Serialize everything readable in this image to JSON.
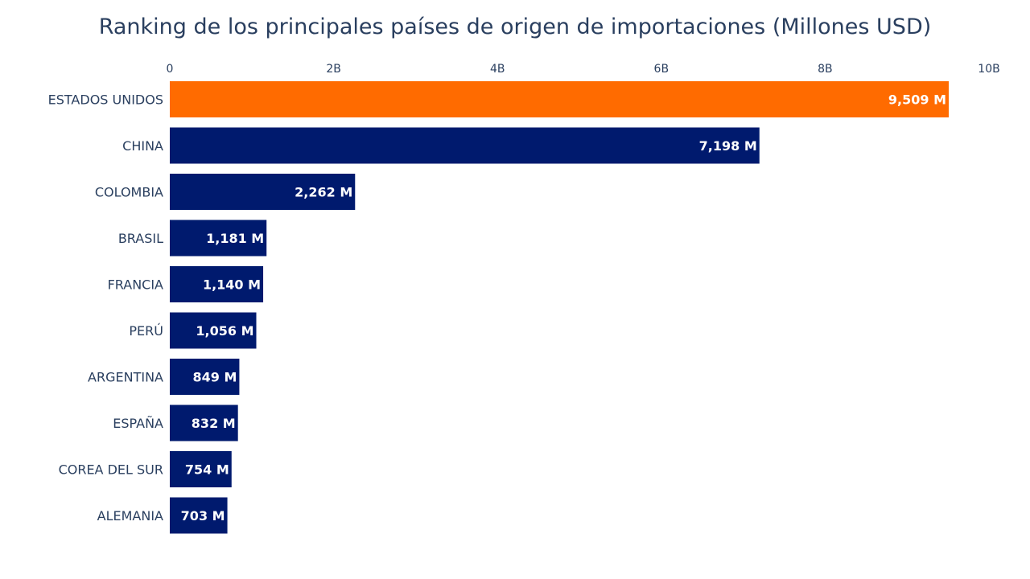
{
  "chart_data": {
    "type": "bar",
    "orientation": "horizontal",
    "title": "Ranking de los principales países de origen de importaciones (Millones USD)",
    "xlabel": "",
    "ylabel": "",
    "xlim": [
      0,
      10000
    ],
    "x_ticks": [
      {
        "value": 0,
        "label": "0"
      },
      {
        "value": 2000,
        "label": "2B"
      },
      {
        "value": 4000,
        "label": "4B"
      },
      {
        "value": 6000,
        "label": "6B"
      },
      {
        "value": 8000,
        "label": "8B"
      },
      {
        "value": 10000,
        "label": "10B"
      }
    ],
    "x_axis_position": "top",
    "grid": false,
    "legend": false,
    "categories": [
      "ESTADOS UNIDOS",
      "CHINA",
      "COLOMBIA",
      "BRASIL",
      "FRANCIA",
      "PERÚ",
      "ARGENTINA",
      "ESPAÑA",
      "COREA DEL SUR",
      "ALEMANIA"
    ],
    "values": [
      9509,
      7198,
      2262,
      1181,
      1140,
      1056,
      849,
      832,
      754,
      703
    ],
    "data_labels": [
      "9,509 M",
      "7,198 M",
      "2,262 M",
      "1,181 M",
      "1,140 M",
      "1,056 M",
      "849 M",
      "832 M",
      "754 M",
      "703 M"
    ],
    "colors": {
      "highlight": "#ff6b00",
      "default": "#001a6e",
      "text": "#2a3f5f",
      "label_text": "#ffffff"
    },
    "highlight_index": 0
  }
}
